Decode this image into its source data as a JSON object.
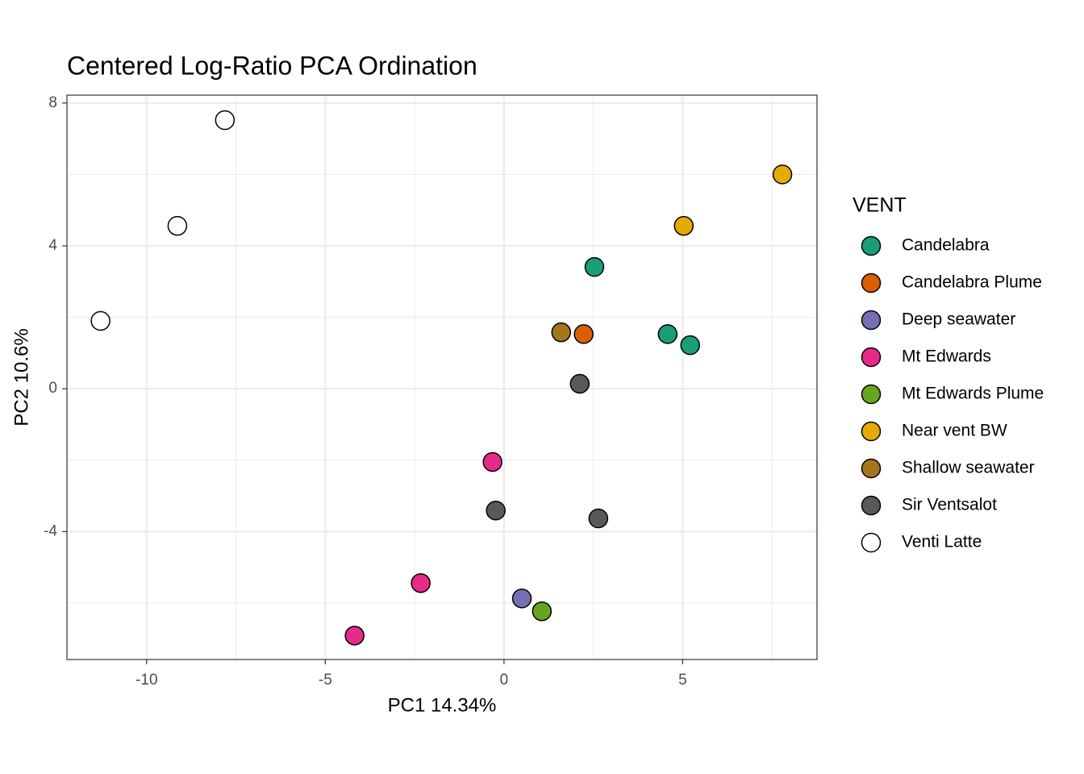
{
  "chart_data": {
    "type": "scatter",
    "title": "Centered Log-Ratio PCA Ordination",
    "x_label": "PC1 14.34%",
    "y_label": "PC2 10.6%",
    "legend_title": "VENT",
    "legend_position": "right",
    "xlim": [
      -12.23,
      8.76
    ],
    "ylim": [
      -7.58,
      8.22
    ],
    "xticks": [
      -10,
      -5,
      0,
      5
    ],
    "yticks": [
      -4,
      0,
      4,
      8
    ],
    "x_minor_ticks": [
      -7.5,
      -2.5,
      2.5,
      7.5
    ],
    "y_minor_ticks": [
      -6,
      -2,
      2,
      6
    ],
    "grid": true,
    "series": [
      {
        "name": "Candelabra",
        "color": "#1b9e77",
        "x": [
          2.53,
          4.58,
          5.21
        ],
        "values": [
          3.41,
          1.53,
          1.22
        ]
      },
      {
        "name": "Candelabra Plume",
        "color": "#d95f02",
        "x": [
          2.23
        ],
        "values": [
          1.53
        ]
      },
      {
        "name": "Deep seawater",
        "color": "#7570b3",
        "x": [
          0.5
        ],
        "values": [
          -5.87
        ]
      },
      {
        "name": "Mt Edwards",
        "color": "#e7298a",
        "x": [
          -0.32,
          -2.33,
          -4.18
        ],
        "values": [
          -2.05,
          -5.44,
          -6.91
        ]
      },
      {
        "name": "Mt Edwards Plume",
        "color": "#66a61e",
        "x": [
          1.06
        ],
        "values": [
          -6.23
        ]
      },
      {
        "name": "Near vent BW",
        "color": "#e6ab02",
        "x": [
          7.79,
          5.03
        ],
        "values": [
          6.0,
          4.56
        ]
      },
      {
        "name": "Shallow seawater",
        "color": "#a6761d",
        "x": [
          1.6
        ],
        "values": [
          1.58
        ]
      },
      {
        "name": "Sir Ventsalot",
        "color": "#595959",
        "x": [
          2.12,
          -0.23,
          2.64
        ],
        "values": [
          0.14,
          -3.41,
          -3.63
        ]
      },
      {
        "name": "Venti Latte",
        "color": "#ffffff",
        "x": [
          -7.81,
          -9.14,
          -11.29
        ],
        "values": [
          7.52,
          4.56,
          1.9
        ]
      }
    ]
  }
}
